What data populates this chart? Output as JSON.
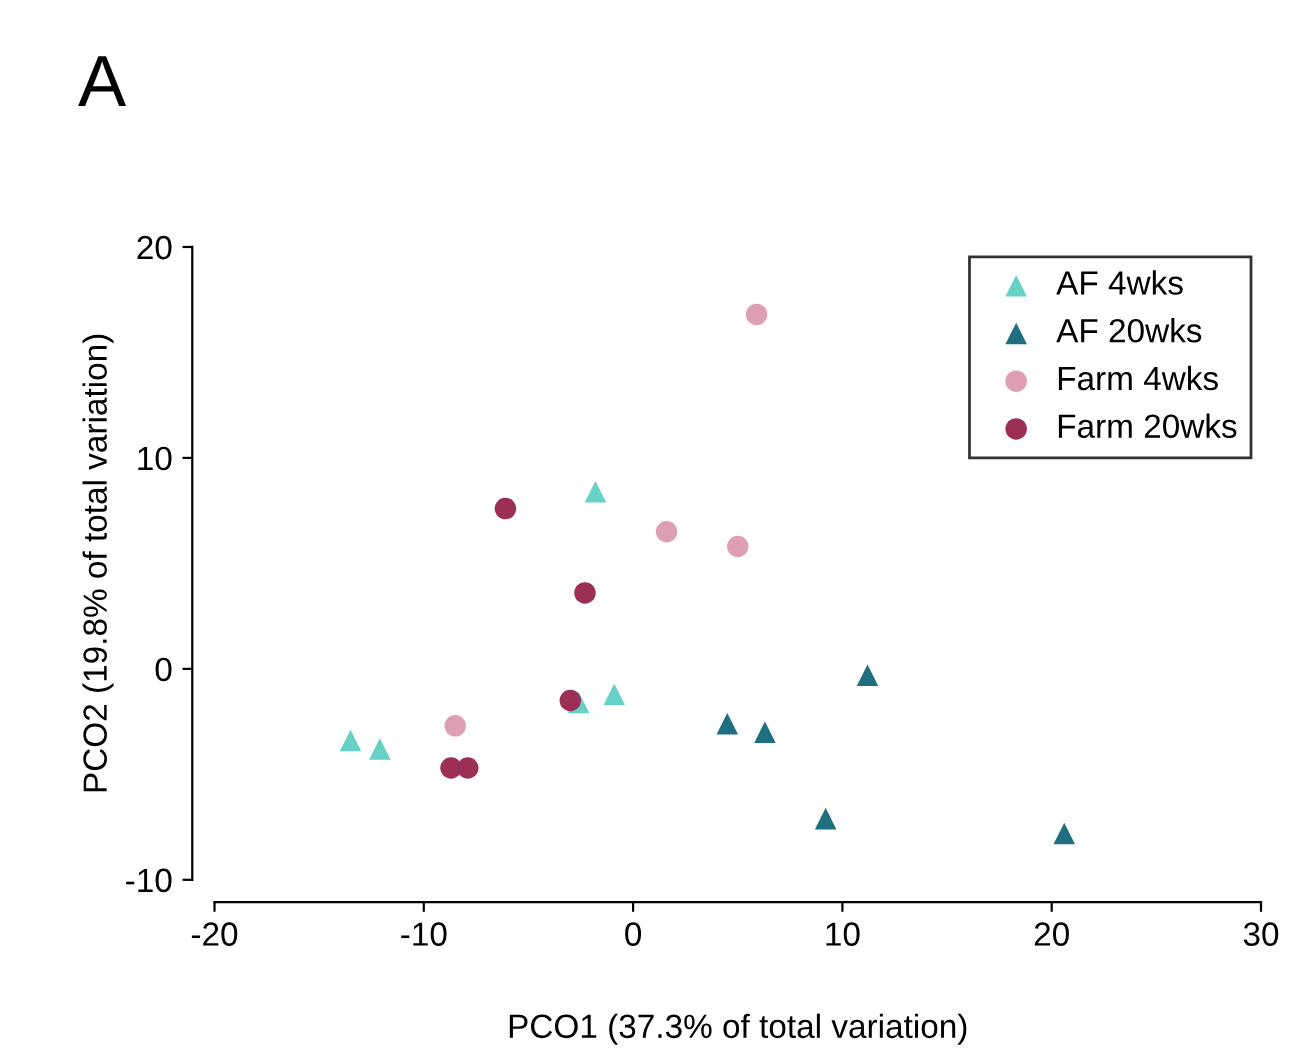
{
  "chart_data": {
    "type": "scatter",
    "title": "A",
    "xlabel": "PCO1 (37.3% of total variation)",
    "ylabel": "PCO2 (19.8% of total variation)",
    "xlim": [
      -20,
      30
    ],
    "xticks": [
      -20,
      -10,
      0,
      10,
      20,
      30
    ],
    "ylim": [
      -10,
      20
    ],
    "yticks": [
      -10,
      0,
      10,
      20
    ],
    "grid": false,
    "legend": "top right",
    "series": [
      {
        "name": "AF 4wks",
        "color": "#66d1c4",
        "marker": "triangle",
        "x": [
          -13.5,
          -12.1,
          -1.8,
          -0.9,
          -2.6
        ],
        "values": [
          -3.4,
          -3.8,
          8.4,
          -1.2,
          -1.6
        ]
      },
      {
        "name": "AF 20wks",
        "color": "#1f6f80",
        "marker": "triangle",
        "x": [
          4.5,
          6.3,
          9.2,
          11.2,
          20.6
        ],
        "values": [
          -2.6,
          -3.0,
          -7.1,
          -0.3,
          -7.8
        ]
      },
      {
        "name": "Farm 4wks",
        "color": "#df9fb2",
        "marker": "circle",
        "x": [
          5.9,
          1.6,
          5.0,
          -8.5
        ],
        "values": [
          16.8,
          6.5,
          5.8,
          -2.7
        ]
      },
      {
        "name": "Farm 20wks",
        "color": "#9b2f55",
        "marker": "circle",
        "x": [
          -6.1,
          -2.3,
          -3.0,
          -8.7,
          -7.9
        ],
        "values": [
          7.6,
          3.6,
          -1.5,
          -4.7,
          -4.7
        ]
      }
    ]
  }
}
